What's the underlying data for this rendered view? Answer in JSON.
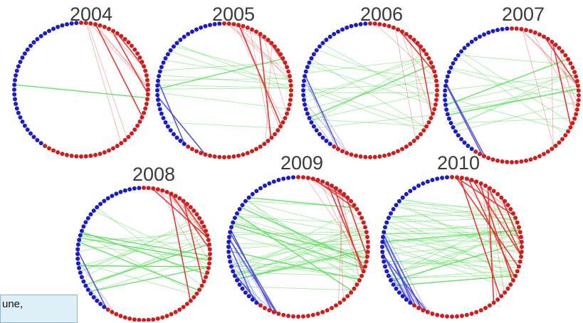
{
  "panels": [
    {
      "year": "2004",
      "blue_links": 0,
      "green_links": 1,
      "red_links": 10
    },
    {
      "year": "2005",
      "blue_links": 3,
      "green_links": 12,
      "red_links": 16
    },
    {
      "year": "2006",
      "blue_links": 5,
      "green_links": 18,
      "red_links": 8
    },
    {
      "year": "2007",
      "blue_links": 2,
      "green_links": 16,
      "red_links": 10
    },
    {
      "year": "2008",
      "blue_links": 3,
      "green_links": 22,
      "red_links": 14
    },
    {
      "year": "2009",
      "blue_links": 12,
      "green_links": 38,
      "red_links": 14
    },
    {
      "year": "2010",
      "blue_links": 16,
      "green_links": 42,
      "red_links": 18
    }
  ],
  "colors": {
    "blue_node": "#1c1cc4",
    "red_node": "#cf1c1c",
    "green_link": "#5fe05f",
    "blue_link": "#4848d8",
    "red_link": "#e03030"
  },
  "caption": {
    "line1": "une,",
    "line2": ""
  }
}
